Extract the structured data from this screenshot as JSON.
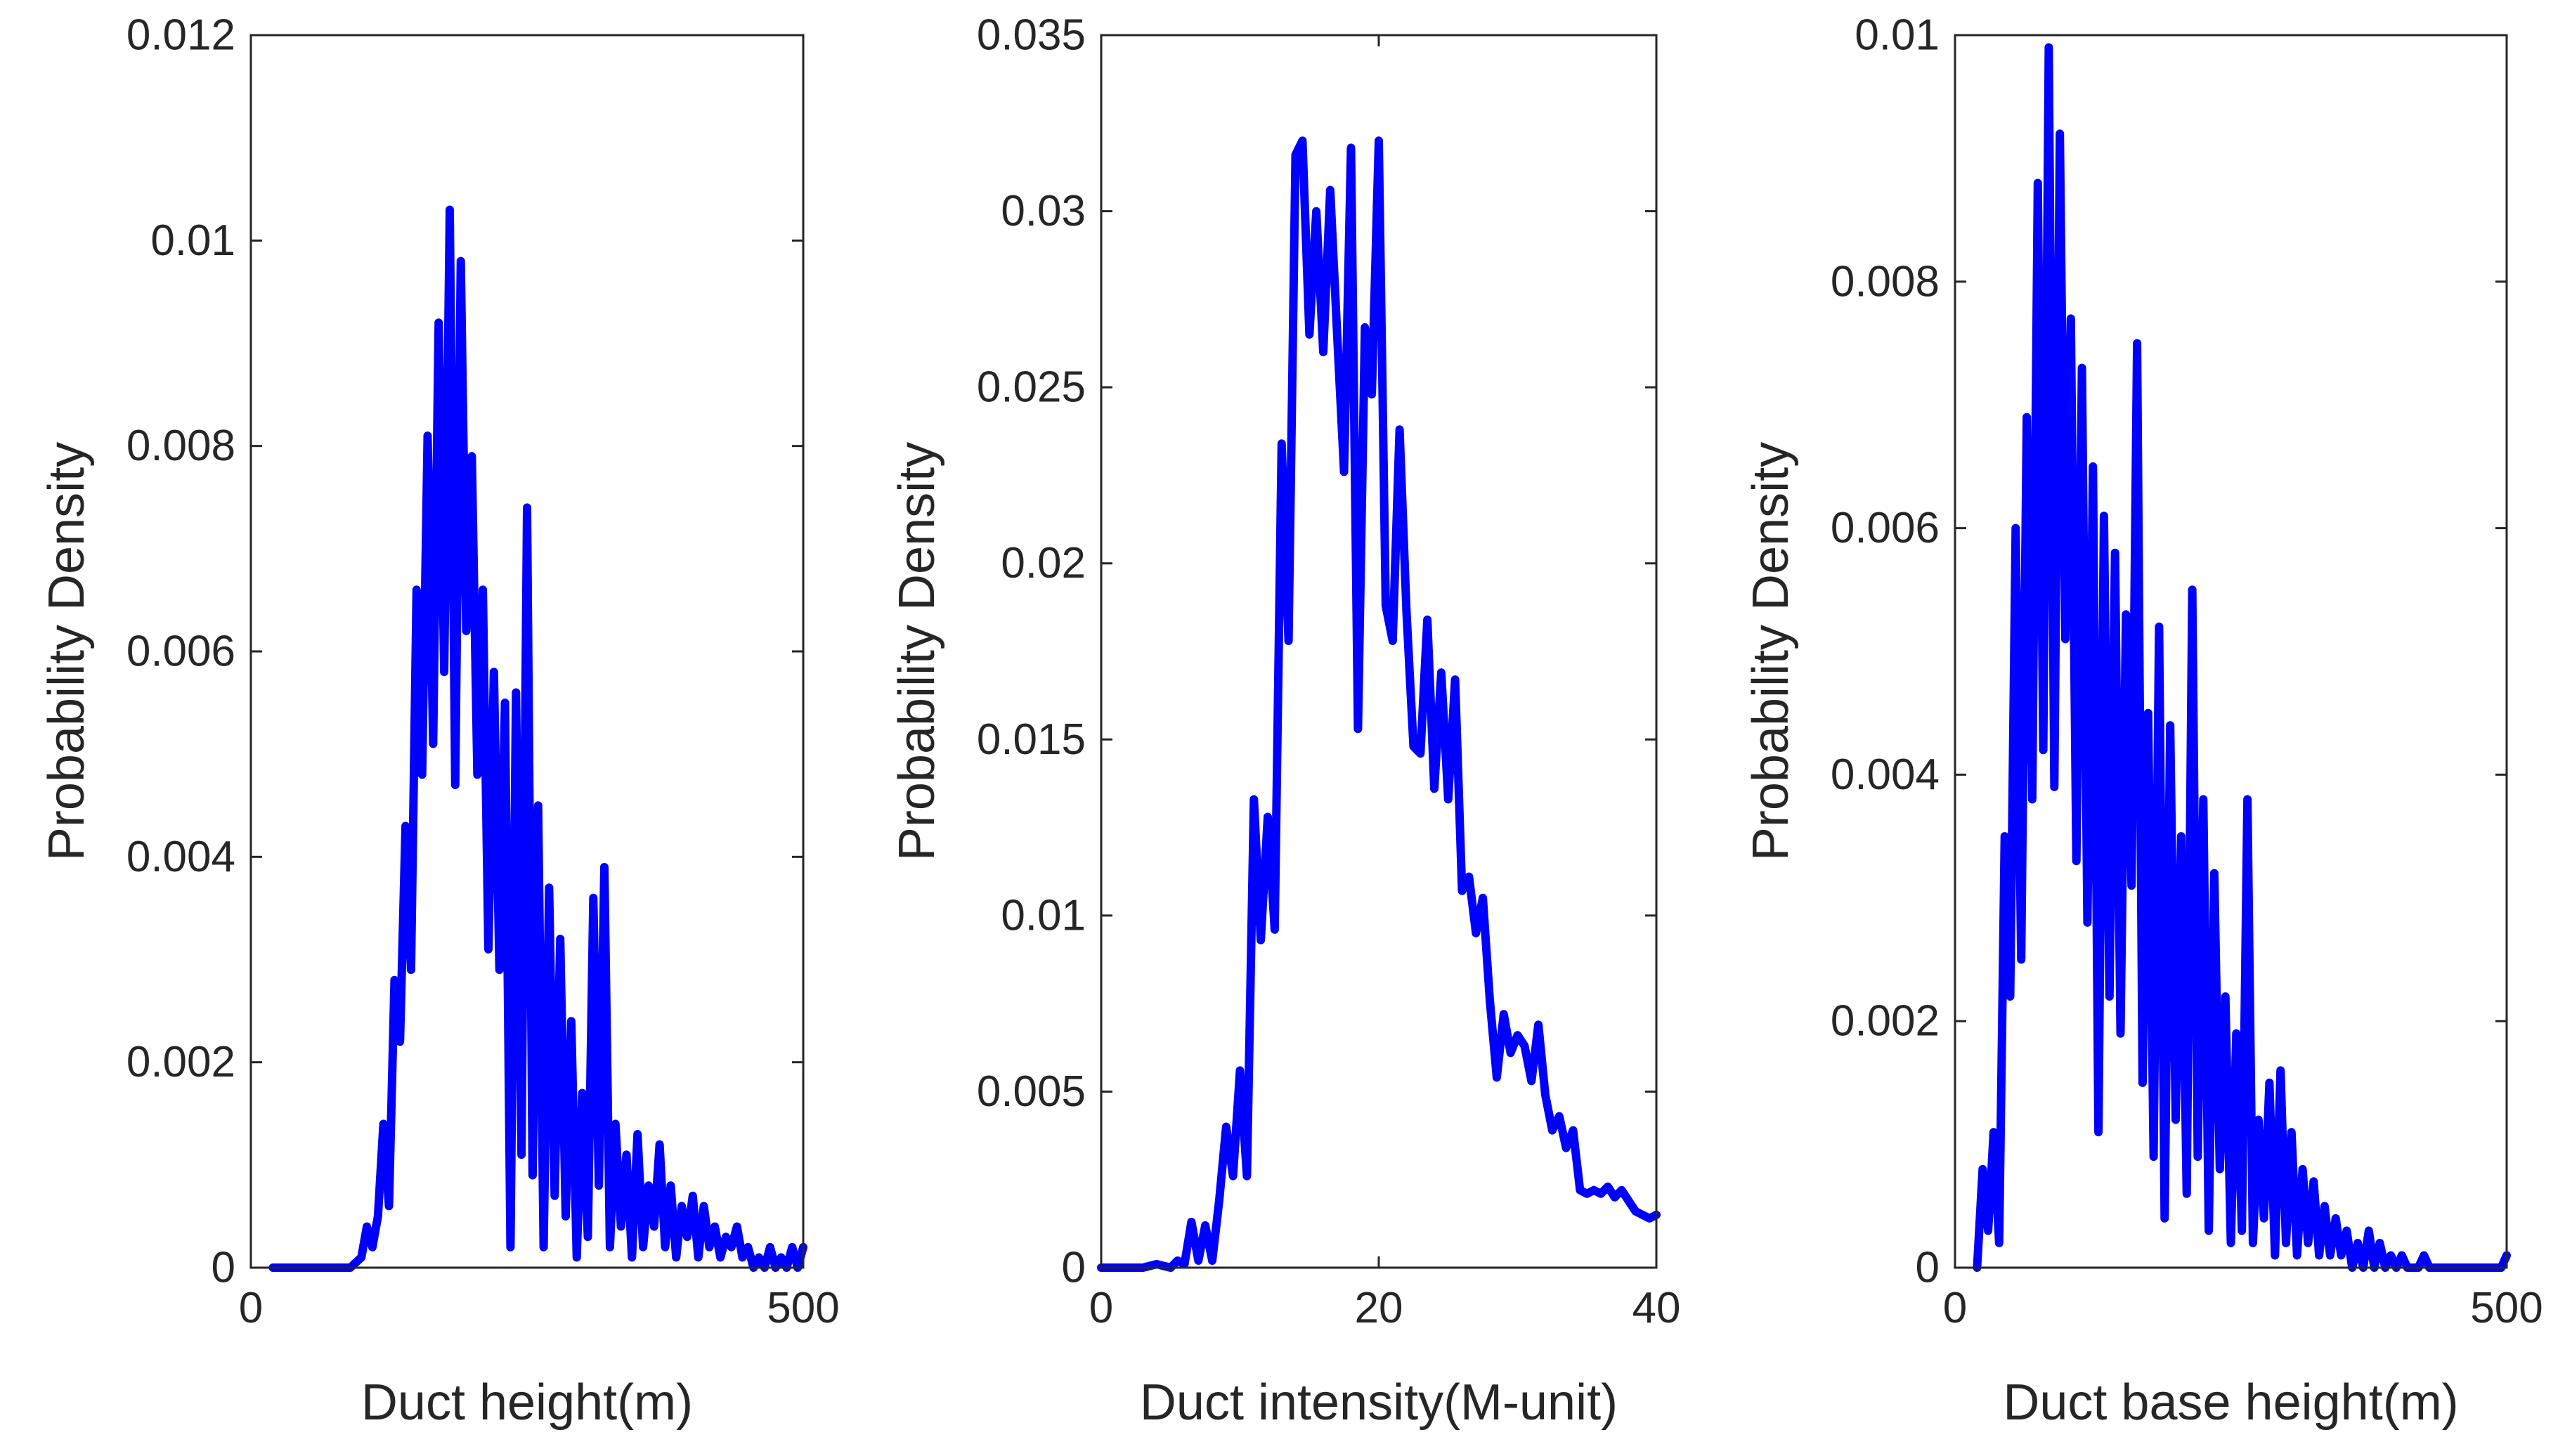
{
  "line_color": "#0000ff",
  "axis_color": "#262626",
  "chart_data": [
    {
      "type": "line",
      "xlabel": "Duct height(m)",
      "ylabel": "Probability Density",
      "xlim": [
        0,
        500
      ],
      "ylim": [
        0,
        0.012
      ],
      "xticks": [
        0,
        500
      ],
      "xtick_labels": [
        "0",
        "500"
      ],
      "yticks": [
        0,
        0.002,
        0.004,
        0.006,
        0.008,
        0.01,
        0.012
      ],
      "ytick_labels": [
        "0",
        "0.002",
        "0.004",
        "0.006",
        "0.008",
        "0.01",
        "0.012"
      ],
      "grid": false,
      "series": [
        {
          "x": [
            20,
            40,
            60,
            80,
            90,
            100,
            105,
            110,
            115,
            120,
            125,
            130,
            135,
            140,
            145,
            150,
            155,
            160,
            165,
            170,
            175,
            180,
            185,
            190,
            195,
            200,
            205,
            210,
            215,
            220,
            225,
            230,
            235,
            240,
            245,
            250,
            255,
            260,
            265,
            270,
            275,
            280,
            285,
            290,
            295,
            300,
            305,
            310,
            315,
            320,
            325,
            330,
            335,
            340,
            345,
            350,
            355,
            360,
            365,
            370,
            375,
            380,
            385,
            390,
            395,
            400,
            405,
            410,
            415,
            420,
            425,
            430,
            435,
            440,
            445,
            450,
            455,
            460,
            465,
            470,
            475,
            480,
            485,
            490,
            495,
            500
          ],
          "y": [
            0,
            0,
            0,
            0,
            0,
            0.0001,
            0.0004,
            0.0002,
            0.0005,
            0.0014,
            0.0006,
            0.0028,
            0.0022,
            0.0043,
            0.0029,
            0.0066,
            0.0048,
            0.0081,
            0.0051,
            0.0092,
            0.0058,
            0.0103,
            0.0047,
            0.0098,
            0.0062,
            0.0079,
            0.0048,
            0.0066,
            0.0031,
            0.0058,
            0.0029,
            0.0055,
            0.0002,
            0.0056,
            0.0011,
            0.0074,
            0.0009,
            0.0045,
            0.0002,
            0.0037,
            0.0007,
            0.0032,
            0.0005,
            0.0024,
            0.0001,
            0.0017,
            0.0003,
            0.0036,
            0.0008,
            0.0039,
            0.0002,
            0.0014,
            0.0004,
            0.0011,
            0.0001,
            0.0013,
            0.0002,
            0.0008,
            0.0004,
            0.0012,
            0.0002,
            0.0008,
            0.0001,
            0.0006,
            0.0003,
            0.0007,
            0.0001,
            0.0006,
            0.0002,
            0.0004,
            0.0001,
            0.0003,
            0.0002,
            0.0004,
            0.0001,
            0.0002,
            0,
            0.0001,
            0,
            0.0002,
            0,
            0.0001,
            0,
            0.0002,
            0,
            0.0002
          ]
        }
      ]
    },
    {
      "type": "line",
      "xlabel": "Duct intensity(M-unit)",
      "ylabel": "Probability Density",
      "xlim": [
        0,
        40
      ],
      "ylim": [
        0,
        0.035
      ],
      "xticks": [
        0,
        20,
        40
      ],
      "xtick_labels": [
        "0",
        "20",
        "40"
      ],
      "yticks": [
        0,
        0.005,
        0.01,
        0.015,
        0.02,
        0.025,
        0.03,
        0.035
      ],
      "ytick_labels": [
        "0",
        "0.005",
        "0.01",
        "0.015",
        "0.02",
        "0.025",
        "0.03",
        "0.035"
      ],
      "grid": false,
      "series": [
        {
          "x": [
            0,
            2,
            3,
            4,
            5,
            5.5,
            6,
            6.5,
            7,
            7.5,
            8,
            8.5,
            9,
            9.5,
            10,
            10.5,
            11,
            11.5,
            12,
            12.5,
            13,
            13.5,
            14,
            14.5,
            15,
            15.5,
            16,
            16.5,
            17,
            17.5,
            18,
            18.5,
            19,
            19.5,
            20,
            20.5,
            21,
            21.5,
            22,
            22.5,
            23,
            23.5,
            24,
            24.5,
            25,
            25.5,
            26,
            26.5,
            27,
            27.5,
            28,
            28.5,
            29,
            29.5,
            30,
            30.5,
            31,
            31.5,
            32,
            32.5,
            33,
            33.5,
            34,
            34.5,
            35,
            35.5,
            36,
            36.5,
            37,
            37.5,
            38,
            38.5,
            39,
            39.5,
            40
          ],
          "y": [
            0,
            0,
            0,
            0.0001,
            0,
            0.0002,
            0.0001,
            0.0013,
            0.0002,
            0.0012,
            0.0002,
            0.0019,
            0.004,
            0.0026,
            0.0056,
            0.0026,
            0.0133,
            0.0093,
            0.0128,
            0.0096,
            0.0234,
            0.0178,
            0.0316,
            0.032,
            0.0265,
            0.03,
            0.026,
            0.0306,
            0.0265,
            0.0226,
            0.0318,
            0.0153,
            0.0267,
            0.0248,
            0.032,
            0.0188,
            0.0178,
            0.0238,
            0.0186,
            0.0148,
            0.0146,
            0.0184,
            0.0136,
            0.0169,
            0.0133,
            0.0167,
            0.0107,
            0.0111,
            0.0095,
            0.0105,
            0.0076,
            0.0054,
            0.0072,
            0.0061,
            0.0066,
            0.0063,
            0.0053,
            0.0069,
            0.0049,
            0.0039,
            0.0043,
            0.0034,
            0.0039,
            0.0022,
            0.0021,
            0.0022,
            0.0021,
            0.0023,
            0.002,
            0.0022,
            0.0019,
            0.0016,
            0.0015,
            0.0014,
            0.0015
          ]
        }
      ]
    },
    {
      "type": "line",
      "xlabel": "Duct base height(m)",
      "ylabel": "Probability Density",
      "xlim": [
        0,
        500
      ],
      "ylim": [
        0,
        0.01
      ],
      "xticks": [
        0,
        500
      ],
      "xtick_labels": [
        "0",
        "500"
      ],
      "yticks": [
        0,
        0.002,
        0.004,
        0.006,
        0.008,
        0.01
      ],
      "ytick_labels": [
        "0",
        "0.002",
        "0.004",
        "0.006",
        "0.008",
        "0.01"
      ],
      "grid": false,
      "series": [
        {
          "x": [
            20,
            25,
            30,
            35,
            40,
            45,
            50,
            55,
            60,
            65,
            70,
            75,
            80,
            85,
            90,
            95,
            100,
            105,
            110,
            115,
            120,
            125,
            130,
            135,
            140,
            145,
            150,
            155,
            160,
            165,
            170,
            175,
            180,
            185,
            190,
            195,
            200,
            205,
            210,
            215,
            220,
            225,
            230,
            235,
            240,
            245,
            250,
            255,
            260,
            265,
            270,
            275,
            280,
            285,
            290,
            295,
            300,
            305,
            310,
            315,
            320,
            325,
            330,
            335,
            340,
            345,
            350,
            355,
            360,
            365,
            370,
            375,
            380,
            385,
            390,
            395,
            400,
            405,
            410,
            415,
            420,
            425,
            430,
            435,
            440,
            445,
            450,
            455,
            460,
            465,
            470,
            475,
            480,
            485,
            490,
            495,
            500
          ],
          "y": [
            0,
            0.0008,
            0.0003,
            0.0011,
            0.0002,
            0.0035,
            0.0022,
            0.006,
            0.0025,
            0.0069,
            0.0038,
            0.0088,
            0.0042,
            0.0099,
            0.0039,
            0.0092,
            0.0051,
            0.0077,
            0.0033,
            0.0073,
            0.0028,
            0.0065,
            0.0011,
            0.0061,
            0.0022,
            0.0058,
            0.0019,
            0.0053,
            0.0031,
            0.0075,
            0.0015,
            0.0045,
            0.0009,
            0.0052,
            0.0004,
            0.0044,
            0.0012,
            0.0035,
            0.0006,
            0.0055,
            0.0009,
            0.0038,
            0.0003,
            0.0032,
            0.0008,
            0.0022,
            0.0002,
            0.0019,
            0.0003,
            0.0038,
            0.0002,
            0.0012,
            0.0004,
            0.0015,
            0.0001,
            0.0016,
            0.0002,
            0.0011,
            0.0001,
            0.0008,
            0.0002,
            0.0007,
            0.0001,
            0.0005,
            0.0001,
            0.0004,
            0.0001,
            0.0003,
            0,
            0.0002,
            0,
            0.0003,
            0,
            0.0002,
            0,
            0.0001,
            0,
            0.0001,
            0,
            0,
            0,
            0.0001,
            0,
            0,
            0,
            0,
            0,
            0,
            0,
            0,
            0,
            0,
            0,
            0,
            0,
            0,
            0.0001
          ]
        }
      ]
    }
  ]
}
